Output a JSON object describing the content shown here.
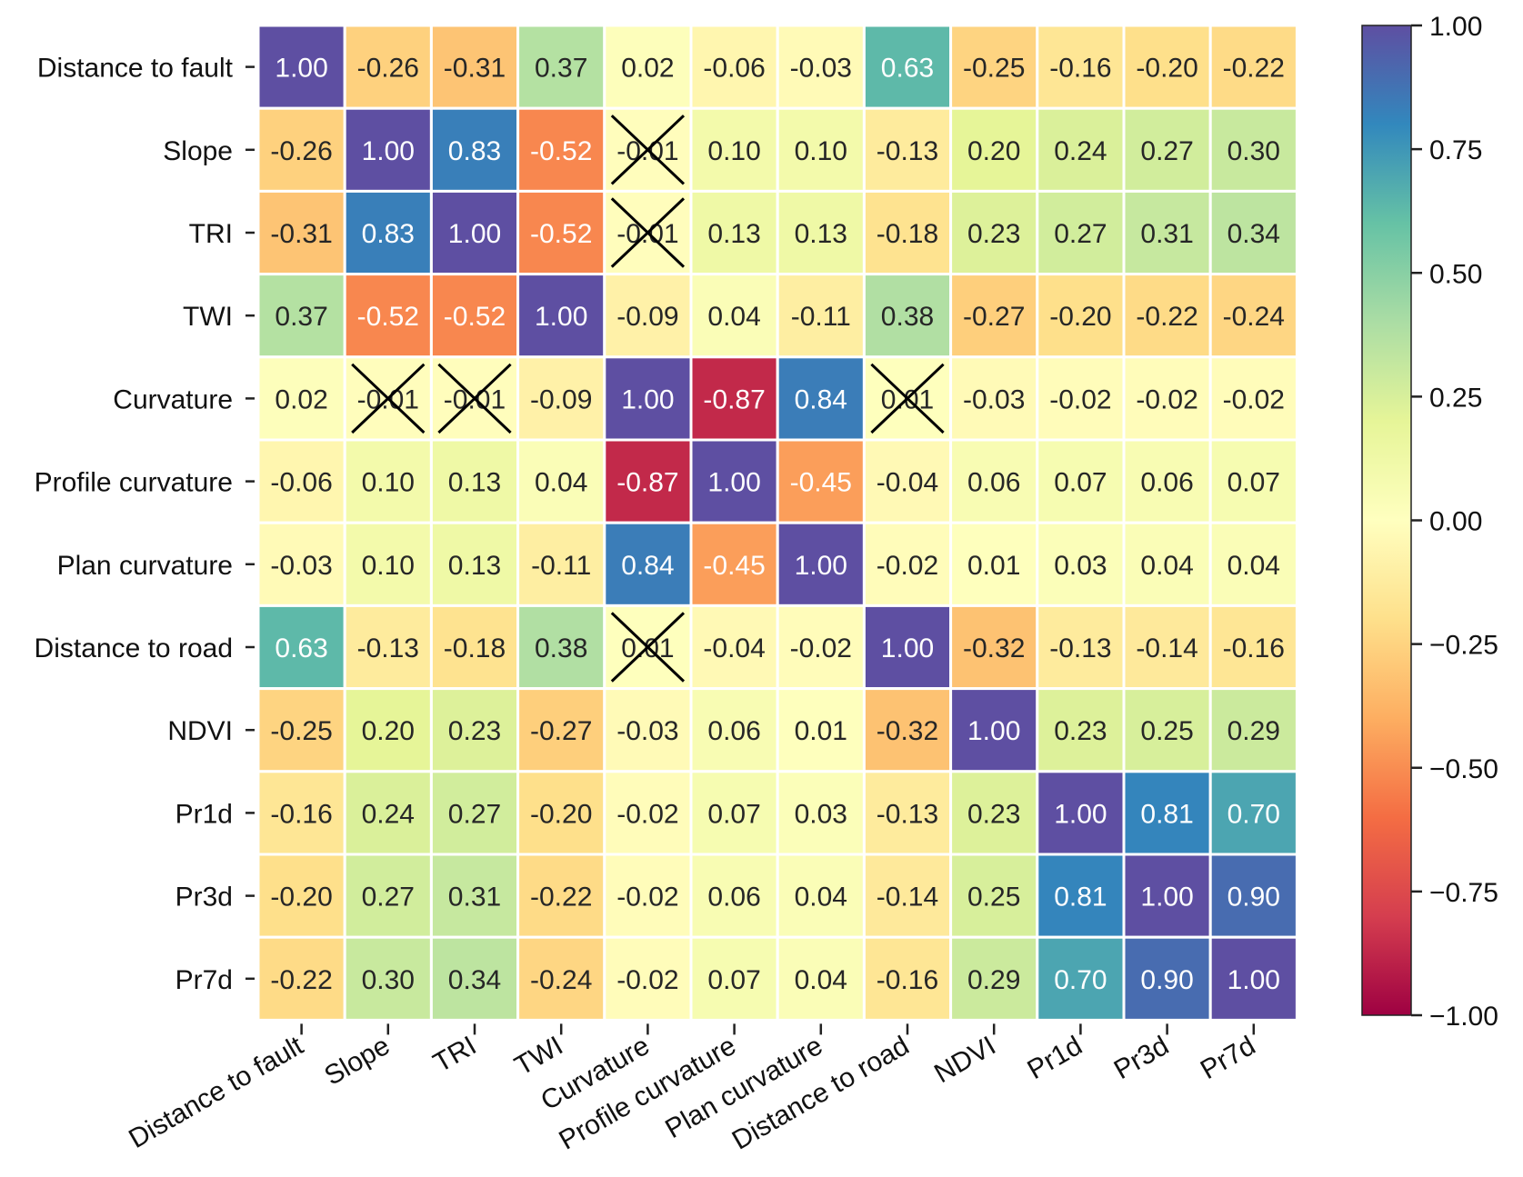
{
  "chart_data": {
    "type": "heatmap",
    "title": "",
    "xlabel": "",
    "ylabel": "",
    "variables": [
      "Distance to fault",
      "Slope",
      "TRI",
      "TWI",
      "Curvature",
      "Profile curvature",
      "Plan curvature",
      "Distance to road",
      "NDVI",
      "Pr1d",
      "Pr3d",
      "Pr7d"
    ],
    "matrix": [
      [
        1.0,
        -0.26,
        -0.31,
        0.37,
        0.02,
        -0.06,
        -0.03,
        0.63,
        -0.25,
        -0.16,
        -0.2,
        -0.22
      ],
      [
        -0.26,
        1.0,
        0.83,
        -0.52,
        -0.01,
        0.1,
        0.1,
        -0.13,
        0.2,
        0.24,
        0.27,
        0.3
      ],
      [
        -0.31,
        0.83,
        1.0,
        -0.52,
        -0.01,
        0.13,
        0.13,
        -0.18,
        0.23,
        0.27,
        0.31,
        0.34
      ],
      [
        0.37,
        -0.52,
        -0.52,
        1.0,
        -0.09,
        0.04,
        -0.11,
        0.38,
        -0.27,
        -0.2,
        -0.22,
        -0.24
      ],
      [
        0.02,
        -0.01,
        -0.01,
        -0.09,
        1.0,
        -0.87,
        0.84,
        0.01,
        -0.03,
        -0.02,
        -0.02,
        -0.02
      ],
      [
        -0.06,
        0.1,
        0.13,
        0.04,
        -0.87,
        1.0,
        -0.45,
        -0.04,
        0.06,
        0.07,
        0.06,
        0.07
      ],
      [
        -0.03,
        0.1,
        0.13,
        -0.11,
        0.84,
        -0.45,
        1.0,
        -0.02,
        0.01,
        0.03,
        0.04,
        0.04
      ],
      [
        0.63,
        -0.13,
        -0.18,
        0.38,
        0.01,
        -0.04,
        -0.02,
        1.0,
        -0.32,
        -0.13,
        -0.14,
        -0.16
      ],
      [
        -0.25,
        0.2,
        0.23,
        -0.27,
        -0.03,
        0.06,
        0.01,
        -0.32,
        1.0,
        0.23,
        0.25,
        0.29
      ],
      [
        -0.16,
        0.24,
        0.27,
        -0.2,
        -0.02,
        0.07,
        0.03,
        -0.13,
        0.23,
        1.0,
        0.81,
        0.7
      ],
      [
        -0.2,
        0.27,
        0.31,
        -0.22,
        -0.02,
        0.06,
        0.04,
        -0.14,
        0.25,
        0.81,
        1.0,
        0.9
      ],
      [
        -0.22,
        0.3,
        0.34,
        -0.24,
        -0.02,
        0.07,
        0.04,
        -0.16,
        0.29,
        0.7,
        0.9,
        1.0
      ]
    ],
    "crossed_out_cells": [
      [
        1,
        4
      ],
      [
        2,
        4
      ],
      [
        4,
        1
      ],
      [
        4,
        2
      ],
      [
        4,
        7
      ],
      [
        7,
        4
      ]
    ],
    "colormap": "Spectral",
    "colorbar": {
      "range": [
        -1.0,
        1.0
      ],
      "ticks": [
        1.0,
        0.75,
        0.5,
        0.25,
        0.0,
        -0.25,
        -0.5,
        -0.75,
        -1.0
      ],
      "tick_labels": [
        "1.00",
        "0.75",
        "0.50",
        "0.25",
        "0.00",
        "−0.25",
        "−0.50",
        "−0.75",
        "−1.00"
      ],
      "placement": "right"
    },
    "cell_border_color": "#ffffff",
    "cross_color": "#000000"
  }
}
